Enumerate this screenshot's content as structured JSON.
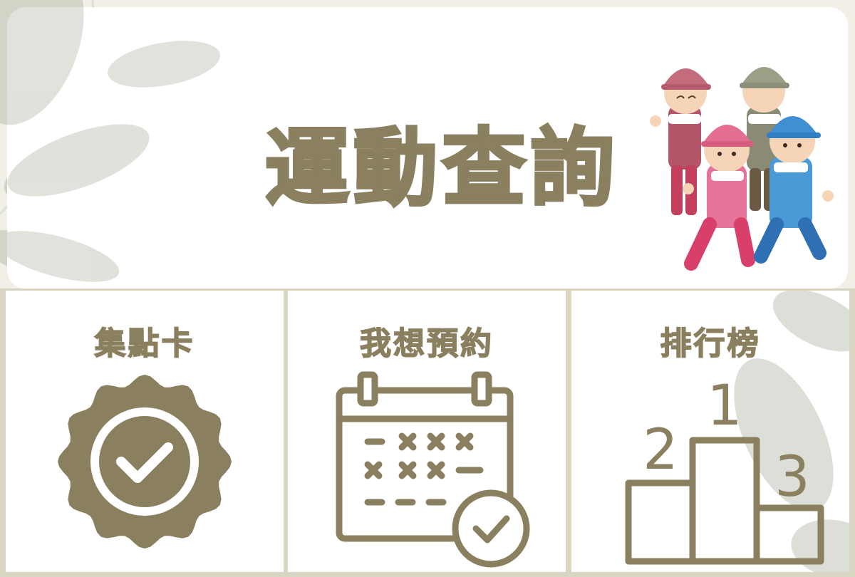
{
  "header": {
    "title": "運動查詢"
  },
  "menu": {
    "items": [
      {
        "label": "集點卡",
        "icon": "badge-check-icon"
      },
      {
        "label": "我想預約",
        "icon": "calendar-check-icon"
      },
      {
        "label": "排行榜",
        "icon": "podium-icon"
      }
    ],
    "podium_ranks": [
      "1",
      "2",
      "3"
    ]
  },
  "colors": {
    "accent": "#8a7f5e",
    "background": "#f2efe7",
    "panel": "#ffffff",
    "divider": "#d9d5c3"
  }
}
